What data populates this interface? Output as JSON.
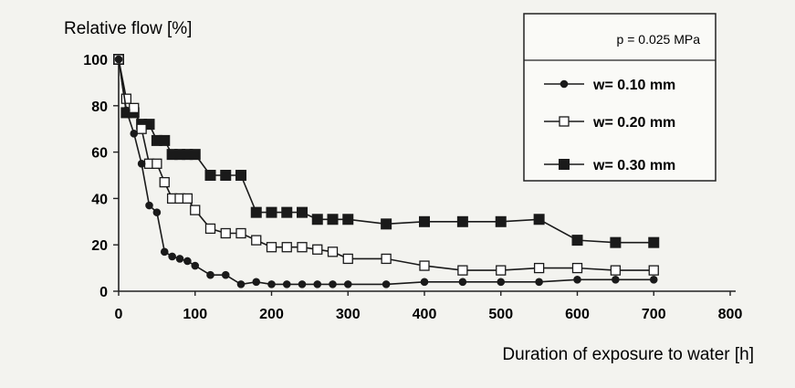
{
  "chart_data": {
    "type": "line",
    "title": "",
    "ylabel": "Relative flow [%]",
    "xlabel": "Duration of exposure to water [h]",
    "xlim": [
      0,
      800
    ],
    "ylim": [
      0,
      100
    ],
    "xticks": [
      0,
      100,
      200,
      300,
      400,
      500,
      600,
      700,
      800
    ],
    "yticks": [
      0,
      20,
      40,
      60,
      80,
      100
    ],
    "grid": false,
    "legend_position": "top-right",
    "legend_title": "p = 0.025 MPa",
    "series": [
      {
        "name": "w= 0.10 mm",
        "marker": "filled-circle",
        "color": "#1a1a1a",
        "x": [
          0,
          10,
          20,
          30,
          40,
          50,
          60,
          70,
          80,
          90,
          100,
          120,
          140,
          160,
          180,
          200,
          220,
          240,
          260,
          280,
          300,
          350,
          400,
          450,
          500,
          550,
          600,
          650,
          700
        ],
        "y": [
          100,
          78,
          68,
          55,
          37,
          34,
          17,
          15,
          14,
          13,
          11,
          7,
          7,
          3,
          4,
          3,
          3,
          3,
          3,
          3,
          3,
          3,
          4,
          4,
          4,
          4,
          5,
          5,
          5
        ]
      },
      {
        "name": "w= 0.20 mm",
        "marker": "open-square",
        "color": "#1a1a1a",
        "x": [
          0,
          10,
          20,
          30,
          40,
          50,
          60,
          70,
          80,
          90,
          100,
          120,
          140,
          160,
          180,
          200,
          220,
          240,
          260,
          280,
          300,
          350,
          400,
          450,
          500,
          550,
          600,
          650,
          700
        ],
        "y": [
          100,
          83,
          79,
          70,
          55,
          55,
          47,
          40,
          40,
          40,
          35,
          27,
          25,
          25,
          22,
          19,
          19,
          19,
          18,
          17,
          14,
          14,
          11,
          9,
          9,
          10,
          10,
          9,
          9
        ]
      },
      {
        "name": "w= 0.30 mm",
        "marker": "filled-square",
        "color": "#1a1a1a",
        "x": [
          0,
          10,
          20,
          30,
          40,
          50,
          60,
          70,
          80,
          90,
          100,
          120,
          140,
          160,
          180,
          200,
          220,
          240,
          260,
          280,
          300,
          350,
          400,
          450,
          500,
          550,
          600,
          650,
          700
        ],
        "y": [
          100,
          77,
          77,
          72,
          72,
          65,
          65,
          59,
          59,
          59,
          59,
          50,
          50,
          50,
          34,
          34,
          34,
          34,
          31,
          31,
          31,
          29,
          30,
          30,
          30,
          31,
          22,
          21,
          21
        ]
      }
    ]
  }
}
